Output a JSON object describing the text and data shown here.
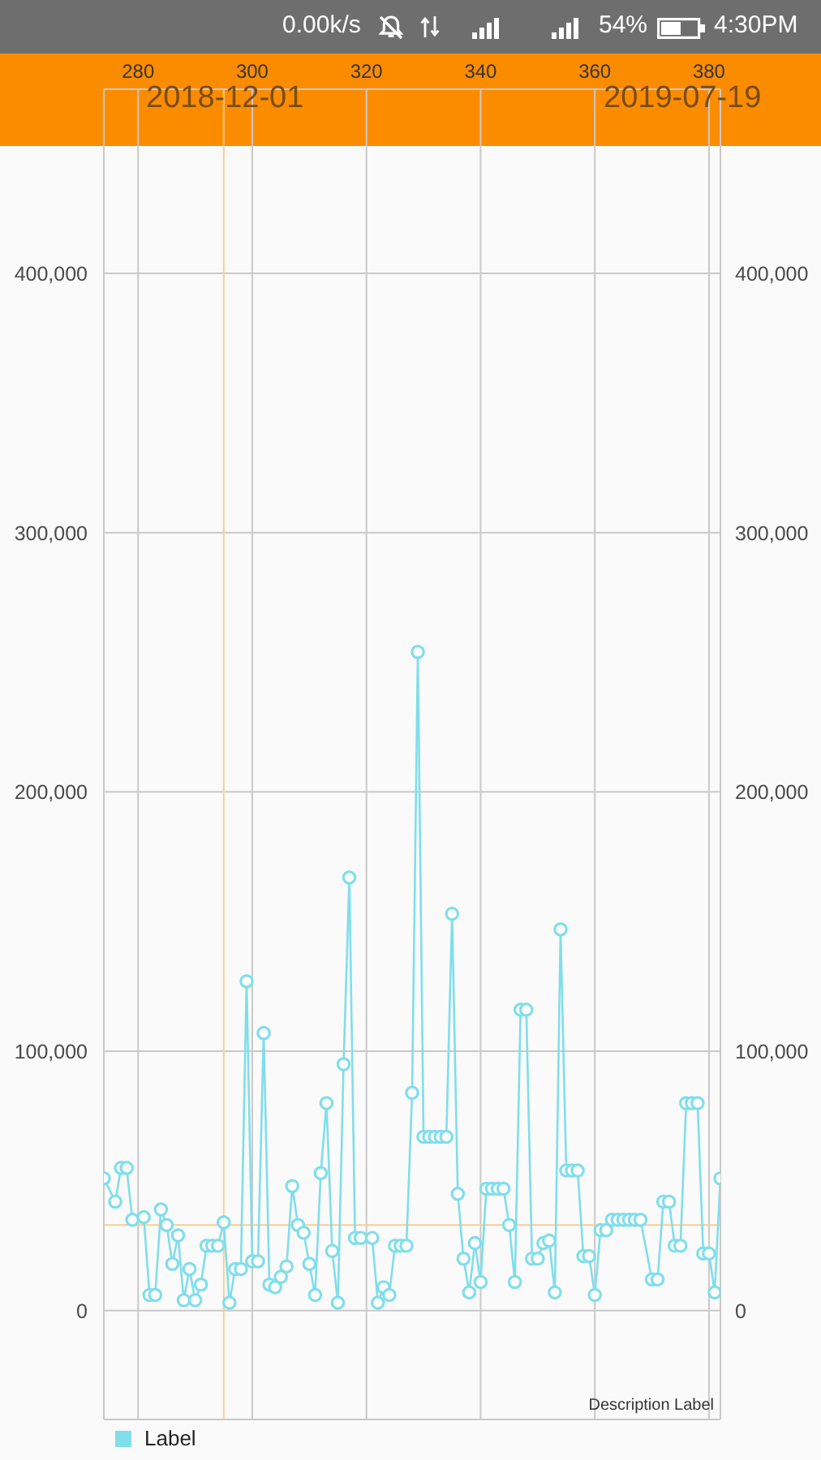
{
  "chart_data": {
    "type": "line",
    "annotations": [
      "0.00k/s",
      "54%",
      "4:30PM",
      "2018-12-01",
      "2019-07-19",
      "Description Label"
    ],
    "xlim": [
      274,
      382
    ],
    "xticks": [
      280,
      300,
      320,
      340,
      360,
      380
    ],
    "ylim": [
      -42000,
      471000
    ],
    "yticks": [
      {
        "value": 0,
        "label": "0"
      },
      {
        "value": 100000,
        "label": "100,000"
      },
      {
        "value": 200000,
        "label": "200,000"
      },
      {
        "value": 300000,
        "label": "300,000"
      },
      {
        "value": 400000,
        "label": "400,000"
      }
    ],
    "y2lim": [
      -42000,
      471000
    ],
    "y2ticks": [
      {
        "value": 0,
        "label": "0"
      },
      {
        "value": 100000,
        "label": "100,000"
      },
      {
        "value": 200000,
        "label": "200,000"
      },
      {
        "value": 300000,
        "label": "300,000"
      },
      {
        "value": 400000,
        "label": "400,000"
      }
    ],
    "series": [
      {
        "name": "Label",
        "color": "#80deea",
        "x": [
          274,
          276,
          277,
          278,
          279,
          281,
          282,
          283,
          284,
          285,
          286,
          287,
          288,
          289,
          290,
          291,
          292,
          293,
          294,
          295,
          296,
          297,
          298,
          299,
          300,
          301,
          302,
          303,
          304,
          305,
          306,
          307,
          308,
          309,
          310,
          311,
          312,
          313,
          314,
          315,
          316,
          317,
          318,
          319,
          321,
          322,
          323,
          324,
          325,
          326,
          327,
          328,
          329,
          330,
          331,
          332,
          333,
          334,
          335,
          336,
          337,
          338,
          339,
          340,
          341,
          342,
          343,
          344,
          345,
          346,
          347,
          348,
          349,
          350,
          351,
          352,
          353,
          354,
          355,
          356,
          357,
          358,
          359,
          360,
          361,
          362,
          363,
          364,
          365,
          366,
          367,
          368,
          370,
          371,
          372,
          373,
          374,
          375,
          376,
          377,
          378,
          379,
          380,
          381,
          382
        ],
        "values": [
          51000,
          42000,
          55000,
          55000,
          35000,
          36000,
          6000,
          6000,
          39000,
          33000,
          18000,
          29000,
          4000,
          16000,
          4000,
          10000,
          25000,
          25000,
          25000,
          34000,
          3000,
          16000,
          16000,
          127000,
          19000,
          19000,
          107000,
          10000,
          9000,
          13000,
          17000,
          48000,
          33000,
          30000,
          18000,
          6000,
          53000,
          80000,
          23000,
          3000,
          95000,
          167000,
          28000,
          28000,
          28000,
          3000,
          9000,
          6000,
          25000,
          25000,
          25000,
          84000,
          254000,
          67000,
          67000,
          67000,
          67000,
          67000,
          153000,
          45000,
          20000,
          7000,
          26000,
          11000,
          47000,
          47000,
          47000,
          47000,
          33000,
          11000,
          116000,
          116000,
          20000,
          20000,
          26000,
          27000,
          7000,
          147000,
          54000,
          54000,
          54000,
          21000,
          21000,
          6000,
          31000,
          31000,
          35000,
          35000,
          35000,
          35000,
          35000,
          35000,
          12000,
          12000,
          42000,
          42000,
          25000,
          25000,
          80000,
          80000,
          80000,
          22000,
          22000,
          7000,
          51000
        ]
      }
    ],
    "ref_lines": [
      {
        "axis": "x",
        "value": 295,
        "color": "#f7cd98"
      },
      {
        "axis": "y",
        "value": 33000,
        "color": "#f7cd98"
      }
    ],
    "grid": true,
    "legend": "bottom left",
    "marker": "circle",
    "line_style": "solid"
  }
}
